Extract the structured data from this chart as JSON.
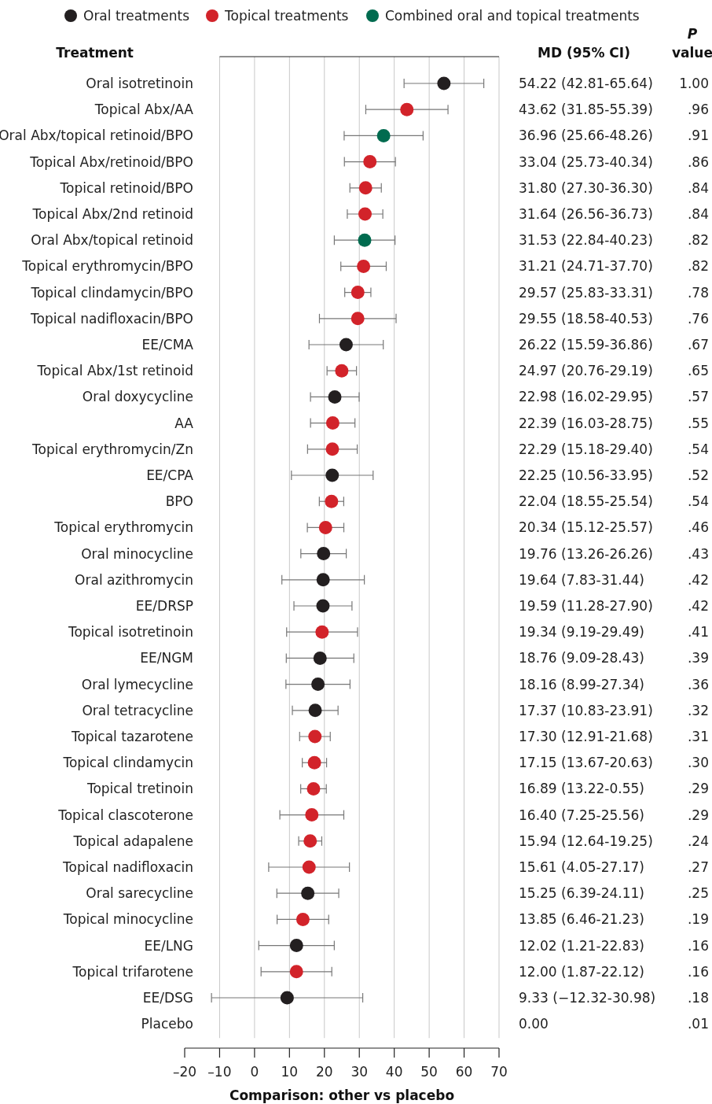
{
  "chart_data": {
    "type": "scatter",
    "orientation": "horizontal",
    "ylabel": "Treatment",
    "xlabel": "Comparison: other vs placebo",
    "legend": "top",
    "grid": "x",
    "marker": "circle",
    "xlim": [
      -20,
      70
    ],
    "xticks": [
      {
        "value": -20,
        "label": "–20"
      },
      {
        "value": -10,
        "label": "–10"
      },
      0,
      10,
      20,
      30,
      40,
      50,
      60,
      70
    ],
    "categories": [
      "Oral isotretinoin",
      "Topical Abx/AA",
      "Oral Abx/topical retinoid/BPO",
      "Topical Abx/retinoid/BPO",
      "Topical retinoid/BPO",
      "Topical Abx/2nd retinoid",
      "Oral Abx/topical retinoid",
      "Topical erythromycin/BPO",
      "Topical clindamycin/BPO",
      "Topical nadifloxacin/BPO",
      "EE/CMA",
      "Topical Abx/1st retinoid",
      "Oral doxycycline",
      "AA",
      "Topical erythromycin/Zn",
      "EE/CPA",
      "BPO",
      "Topical erythromycin",
      "Oral minocycline",
      "Oral azithromycin",
      "EE/DRSP",
      "Topical isotretinoin",
      "EE/NGM",
      "Oral lymecycline",
      "Oral tetracycline",
      "Topical tazarotene",
      "Topical clindamycin",
      "Topical tretinoin",
      "Topical clascoterone",
      "Topical adapalene",
      "Topical nadifloxacin",
      "Oral sarecycline",
      "Topical minocycline",
      "EE/LNG",
      "Topical trifarotene",
      "EE/DSG",
      "Placebo"
    ],
    "series": [
      {
        "name": "Oral treatments",
        "color": "#231f20",
        "values": [
          54.22,
          null,
          null,
          null,
          null,
          null,
          null,
          null,
          null,
          null,
          26.22,
          null,
          22.98,
          null,
          null,
          22.25,
          null,
          null,
          19.76,
          19.64,
          19.59,
          null,
          18.76,
          18.16,
          17.37,
          null,
          null,
          null,
          null,
          null,
          null,
          15.25,
          null,
          12.02,
          null,
          9.33,
          null
        ],
        "errors": [
          [
            42.81,
            65.64
          ],
          null,
          null,
          null,
          null,
          null,
          null,
          null,
          null,
          null,
          [
            15.59,
            36.86
          ],
          null,
          [
            16.02,
            29.95
          ],
          null,
          null,
          [
            10.56,
            33.95
          ],
          null,
          null,
          [
            13.26,
            26.26
          ],
          [
            7.83,
            31.44
          ],
          [
            11.28,
            27.9
          ],
          null,
          [
            9.09,
            28.43
          ],
          [
            8.99,
            27.34
          ],
          [
            10.83,
            23.91
          ],
          null,
          null,
          null,
          null,
          null,
          null,
          [
            6.39,
            24.11
          ],
          null,
          [
            1.21,
            22.83
          ],
          null,
          [
            -12.32,
            30.98
          ],
          null
        ]
      },
      {
        "name": "Topical treatments",
        "color": "#d2232a",
        "values": [
          null,
          43.62,
          null,
          33.04,
          31.8,
          31.64,
          null,
          31.21,
          29.57,
          29.55,
          null,
          24.97,
          null,
          22.39,
          22.29,
          null,
          22.04,
          20.34,
          null,
          null,
          null,
          19.34,
          null,
          null,
          null,
          17.3,
          17.15,
          16.89,
          16.4,
          15.94,
          15.61,
          null,
          13.85,
          null,
          12.0,
          null,
          null
        ],
        "errors": [
          null,
          [
            31.85,
            55.39
          ],
          null,
          [
            25.73,
            40.34
          ],
          [
            27.3,
            36.3
          ],
          [
            26.56,
            36.73
          ],
          null,
          [
            24.71,
            37.7
          ],
          [
            25.83,
            33.31
          ],
          [
            18.58,
            40.53
          ],
          null,
          [
            20.76,
            29.19
          ],
          null,
          [
            16.03,
            28.75
          ],
          [
            15.18,
            29.4
          ],
          null,
          [
            18.55,
            25.54
          ],
          [
            15.12,
            25.57
          ],
          null,
          null,
          null,
          [
            9.19,
            29.49
          ],
          null,
          null,
          null,
          [
            12.91,
            21.68
          ],
          [
            13.67,
            20.63
          ],
          [
            13.22,
            20.55
          ],
          [
            7.25,
            25.56
          ],
          [
            12.64,
            19.25
          ],
          [
            4.05,
            27.17
          ],
          null,
          [
            6.46,
            21.23
          ],
          null,
          [
            1.87,
            22.12
          ],
          null,
          null
        ]
      },
      {
        "name": "Combined oral and topical treatments",
        "color": "#006b4f",
        "values": [
          null,
          null,
          36.96,
          null,
          null,
          null,
          31.53,
          null,
          null,
          null,
          null,
          null,
          null,
          null,
          null,
          null,
          null,
          null,
          null,
          null,
          null,
          null,
          null,
          null,
          null,
          null,
          null,
          null,
          null,
          null,
          null,
          null,
          null,
          null,
          null,
          null,
          null
        ],
        "errors": [
          null,
          null,
          [
            25.66,
            48.26
          ],
          null,
          null,
          null,
          [
            22.84,
            40.23
          ],
          null,
          null,
          null,
          null,
          null,
          null,
          null,
          null,
          null,
          null,
          null,
          null,
          null,
          null,
          null,
          null,
          null,
          null,
          null,
          null,
          null,
          null,
          null,
          null,
          null,
          null,
          null,
          null,
          null,
          null
        ]
      }
    ],
    "value_labels": [
      "54.22 (42.81-65.64)",
      "43.62 (31.85-55.39)",
      "36.96 (25.66-48.26)",
      "33.04 (25.73-40.34)",
      "31.80 (27.30-36.30)",
      "31.64 (26.56-36.73)",
      "31.53 (22.84-40.23)",
      "31.21 (24.71-37.70)",
      "29.57 (25.83-33.31)",
      "29.55 (18.58-40.53)",
      "26.22 (15.59-36.86)",
      "24.97 (20.76-29.19)",
      "22.98 (16.02-29.95)",
      "22.39 (16.03-28.75)",
      "22.29 (15.18-29.40)",
      "22.25 (10.56-33.95)",
      "22.04 (18.55-25.54)",
      "20.34 (15.12-25.57)",
      "19.76 (13.26-26.26)",
      "19.64 (7.83-31.44)",
      "19.59 (11.28-27.90)",
      "19.34 (9.19-29.49)",
      "18.76 (9.09-28.43)",
      "18.16 (8.99-27.34)",
      "17.37 (10.83-23.91)",
      "17.30 (12.91-21.68)",
      "17.15 (13.67-20.63)",
      "16.89 (13.22-0.55)",
      "16.40 (7.25-25.56)",
      "15.94 (12.64-19.25)",
      "15.61 (4.05-27.17)",
      "15.25 (6.39-24.11)",
      "13.85 (6.46-21.23)",
      "12.02 (1.21-22.83)",
      "12.00 (1.87-22.12)",
      "9.33 (−12.32-30.98)",
      "0.00"
    ],
    "annotations": [
      "MD (95% CI)",
      "P value",
      "1.00",
      ".96",
      ".91",
      ".86",
      ".84",
      ".84",
      ".82",
      ".82",
      ".78",
      ".76",
      ".67",
      ".65",
      ".57",
      ".55",
      ".54",
      ".52",
      ".54",
      ".46",
      ".43",
      ".42",
      ".42",
      ".41",
      ".39",
      ".36",
      ".32",
      ".31",
      ".30",
      ".29",
      ".29",
      ".24",
      ".27",
      ".25",
      ".19",
      ".16",
      ".16",
      ".18",
      ".01"
    ]
  }
}
